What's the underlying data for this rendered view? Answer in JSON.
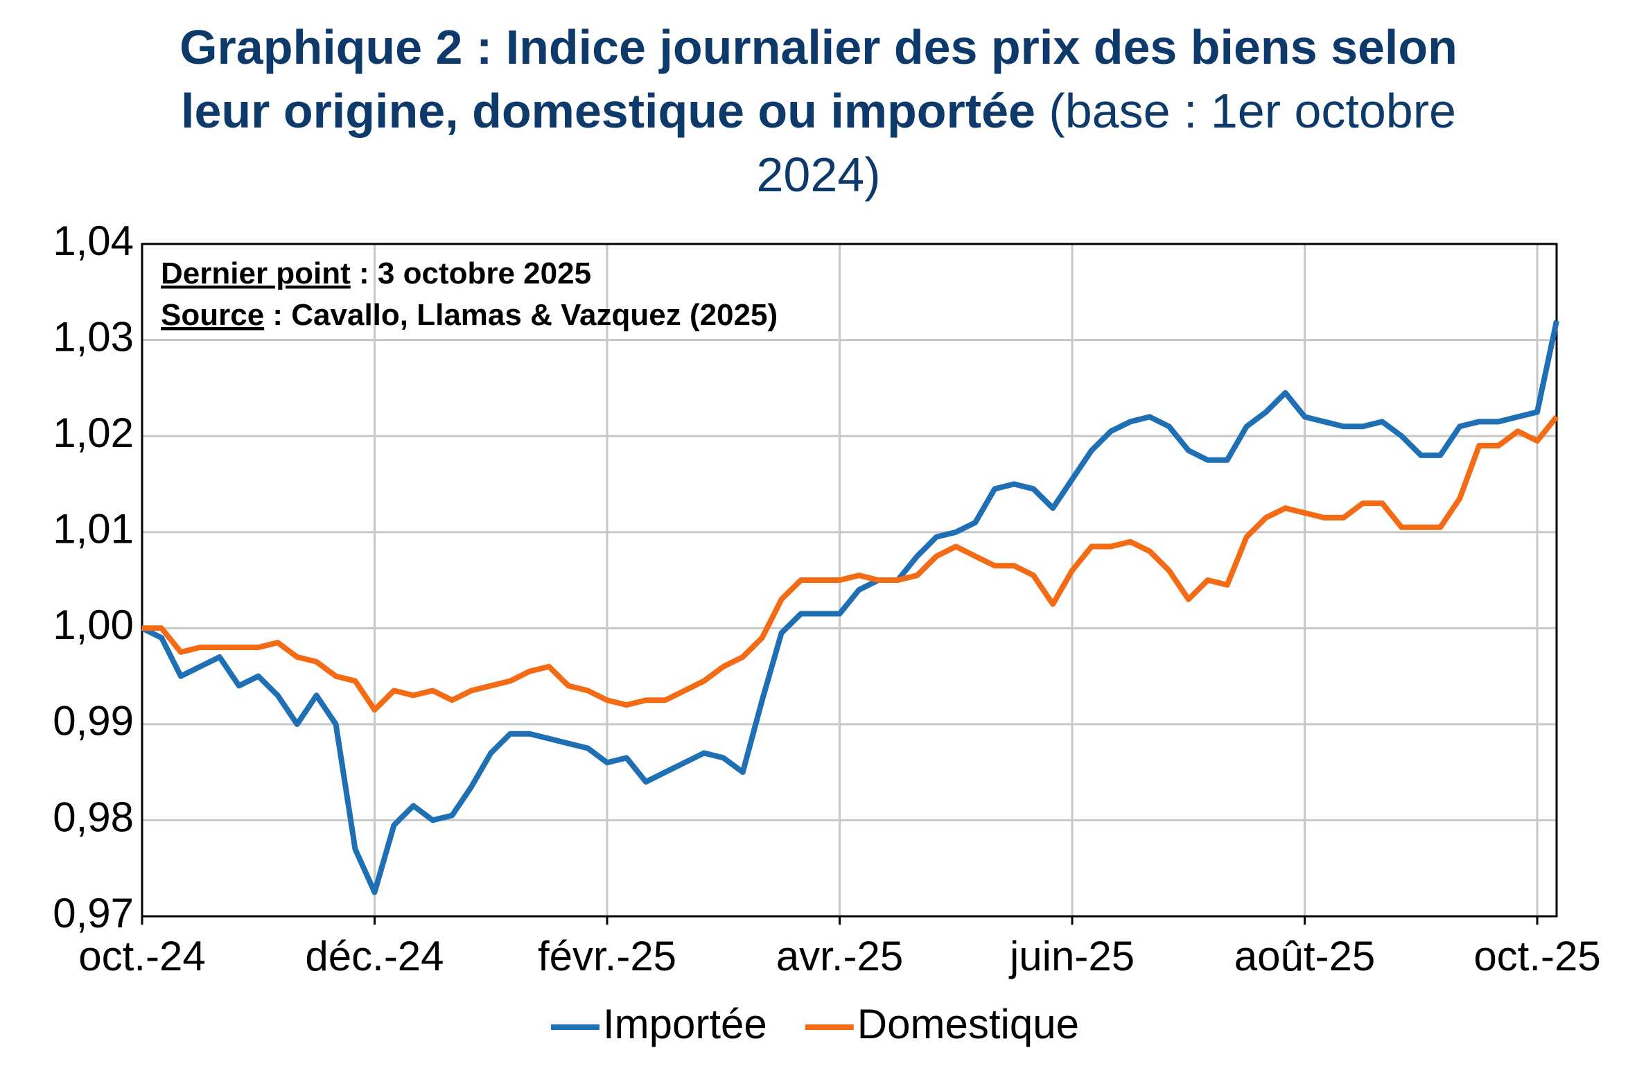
{
  "chart_data": {
    "type": "line",
    "title": "Graphique 2 : Indice journalier des prix des biens selon leur origine, domestique ou importée",
    "subtitle": "(base : 1er octobre 2024)",
    "annotations": [
      {
        "label": "Dernier point",
        "text": " : 3 octobre 2025"
      },
      {
        "label": "Source",
        "text": " : Cavallo, Llamas & Vazquez (2025)"
      }
    ],
    "categories": [
      "oct.-24",
      null,
      null,
      null,
      null,
      null,
      null,
      null,
      null,
      null,
      null,
      null,
      "déc.-24",
      null,
      null,
      null,
      null,
      null,
      null,
      null,
      null,
      null,
      null,
      null,
      "févr.-25",
      null,
      null,
      null,
      null,
      null,
      null,
      null,
      null,
      null,
      null,
      null,
      "avr.-25",
      null,
      null,
      null,
      null,
      null,
      null,
      null,
      null,
      null,
      null,
      null,
      "juin-25",
      null,
      null,
      null,
      null,
      null,
      null,
      null,
      null,
      null,
      null,
      null,
      "août-25",
      null,
      null,
      null,
      null,
      null,
      null,
      null,
      null,
      null,
      null,
      null,
      "oct.-25",
      null
    ],
    "series": [
      {
        "name": "Importée",
        "color": "#1f6fb5",
        "values": [
          1.0,
          0.999,
          0.995,
          0.996,
          0.997,
          0.994,
          0.995,
          0.993,
          0.99,
          0.993,
          0.99,
          0.977,
          0.9725,
          0.9795,
          0.9815,
          0.98,
          0.9805,
          0.9835,
          0.987,
          0.989,
          0.989,
          0.9885,
          0.988,
          0.9875,
          0.986,
          0.9865,
          0.984,
          0.985,
          0.986,
          0.987,
          0.9865,
          0.985,
          0.9925,
          0.9995,
          1.0015,
          1.0015,
          1.0015,
          1.004,
          1.005,
          1.005,
          1.0075,
          1.0095,
          1.01,
          1.011,
          1.0145,
          1.015,
          1.0145,
          1.0125,
          1.0155,
          1.0185,
          1.0205,
          1.0215,
          1.022,
          1.021,
          1.0185,
          1.0175,
          1.0175,
          1.021,
          1.0225,
          1.0245,
          1.022,
          1.0215,
          1.021,
          1.021,
          1.0215,
          1.02,
          1.018,
          1.018,
          1.021,
          1.0215,
          1.0215,
          1.022,
          1.0225,
          1.032
        ]
      },
      {
        "name": "Domestique",
        "color": "#f36b14",
        "values": [
          1.0,
          1.0,
          0.9975,
          0.998,
          0.998,
          0.998,
          0.998,
          0.9985,
          0.997,
          0.9965,
          0.995,
          0.9945,
          0.9915,
          0.9935,
          0.993,
          0.9935,
          0.9925,
          0.9935,
          0.994,
          0.9945,
          0.9955,
          0.996,
          0.994,
          0.9935,
          0.9925,
          0.992,
          0.9925,
          0.9925,
          0.9935,
          0.9945,
          0.996,
          0.997,
          0.999,
          1.003,
          1.005,
          1.005,
          1.005,
          1.0055,
          1.005,
          1.005,
          1.0055,
          1.0075,
          1.0085,
          1.0075,
          1.0065,
          1.0065,
          1.0055,
          1.0025,
          1.006,
          1.0085,
          1.0085,
          1.009,
          1.008,
          1.006,
          1.003,
          1.005,
          1.0045,
          1.0095,
          1.0115,
          1.0125,
          1.012,
          1.0115,
          1.0115,
          1.013,
          1.013,
          1.0105,
          1.0105,
          1.0105,
          1.0135,
          1.019,
          1.019,
          1.0205,
          1.0195,
          1.022
        ]
      }
    ],
    "ylim": [
      0.97,
      1.04
    ],
    "yticks": [
      {
        "value": 0.97,
        "label": "0,97"
      },
      {
        "value": 0.98,
        "label": "0,98"
      },
      {
        "value": 0.99,
        "label": "0,99"
      },
      {
        "value": 1.0,
        "label": "1,00"
      },
      {
        "value": 1.01,
        "label": "1,01"
      },
      {
        "value": 1.02,
        "label": "1,02"
      },
      {
        "value": 1.03,
        "label": "1,03"
      },
      {
        "value": 1.04,
        "label": "1,04"
      }
    ],
    "grid": true,
    "legend": "bottom"
  }
}
